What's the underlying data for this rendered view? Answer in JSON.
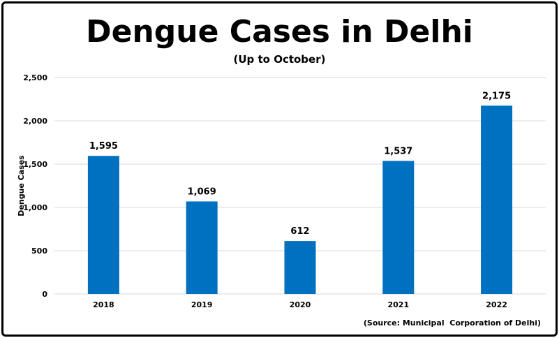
{
  "chart_data": {
    "type": "bar",
    "title": "Dengue Cases in Delhi",
    "subtitle": "(Up to October)",
    "categories": [
      "2018",
      "2019",
      "2020",
      "2021",
      "2022"
    ],
    "values": [
      1595,
      1069,
      612,
      1537,
      2175
    ],
    "data_labels": [
      "1,595",
      "1,069",
      "612",
      "1,537",
      "2,175"
    ],
    "xlabel": "",
    "ylabel": "Dengue Cases",
    "ylim": [
      0,
      2500
    ],
    "yticks": [
      0,
      500,
      1000,
      1500,
      2000,
      2500
    ],
    "ytick_labels": [
      "0",
      "500",
      "1,000",
      "1,500",
      "2,000",
      "2,500"
    ],
    "grid": true,
    "bar_color": "#0070C0",
    "grid_color": "#D9D9D9",
    "source": "(Source: Municipal  Corporation of Delhi)"
  }
}
